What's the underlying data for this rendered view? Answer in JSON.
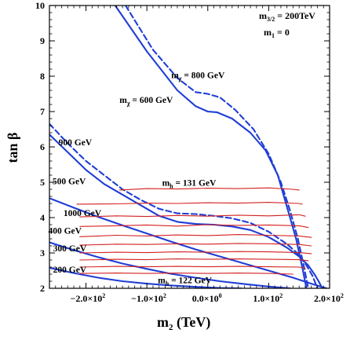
{
  "chart_data": {
    "type": "line",
    "xlabel_main": "m",
    "xlabel_sub": "2",
    "xlabel_unit": " (TeV)",
    "ylabel": "tan β",
    "xlim": [
      -260,
      200
    ],
    "ylim": [
      2,
      10
    ],
    "x_ticks": [
      {
        "value": -200,
        "label": "−2.0×10"
      },
      {
        "value": -100,
        "label": "−1.0×10"
      },
      {
        "value": 0,
        "label": "0.0×10"
      },
      {
        "value": 100,
        "label": "1.0×10"
      },
      {
        "value": 200,
        "label": "2.0×10"
      }
    ],
    "x_tick_exponents": [
      "2",
      "2",
      "0",
      "2",
      "2"
    ],
    "y_ticks": [
      2,
      3,
      4,
      5,
      6,
      7,
      8,
      9,
      10
    ],
    "params": {
      "line1_main": "m",
      "line1_sub": "3/2",
      "line1_rest": " = 200TeV",
      "line2_main": "m",
      "line2_sub": "1",
      "line2_rest": " = 0"
    },
    "colors": {
      "neutralino": "#1f3ed6",
      "higgs": "#d42020"
    },
    "series": [
      {
        "group": "neutralino",
        "style": "solid",
        "x": [
          -152,
          -100,
          -50,
          -20,
          0,
          15,
          40,
          70,
          95,
          115,
          130,
          145,
          155,
          162
        ],
        "y": [
          10,
          8.7,
          7.6,
          7.15,
          7.0,
          6.98,
          6.8,
          6.4,
          5.9,
          5.2,
          4.3,
          3.4,
          2.6,
          2.0
        ]
      },
      {
        "group": "neutralino",
        "style": "dashed",
        "x": [
          -135,
          -90,
          -50,
          -20,
          0,
          20,
          45,
          75,
          100,
          120,
          135,
          148,
          158,
          165
        ],
        "y": [
          10,
          8.75,
          7.95,
          7.55,
          7.5,
          7.4,
          7.05,
          6.5,
          5.8,
          5.0,
          4.2,
          3.4,
          2.6,
          2.0
        ]
      },
      {
        "group": "neutralino",
        "style": "solid",
        "x": [
          -260,
          -230,
          -200,
          -170,
          -140,
          -110,
          -80,
          -50,
          -20,
          10,
          40,
          70,
          100,
          130,
          150,
          165,
          175,
          182,
          188
        ],
        "y": [
          6.35,
          5.85,
          5.35,
          4.95,
          4.65,
          4.35,
          4.05,
          3.88,
          3.82,
          3.8,
          3.75,
          3.65,
          3.45,
          3.15,
          2.9,
          2.65,
          2.4,
          2.2,
          2.0
        ]
      },
      {
        "group": "neutralino",
        "style": "dashed",
        "x": [
          -260,
          -230,
          -200,
          -170,
          -140,
          -110,
          -80,
          -50,
          -20,
          10,
          40,
          70,
          100,
          130,
          150,
          162,
          172,
          180
        ],
        "y": [
          6.65,
          6.1,
          5.6,
          5.2,
          4.8,
          4.5,
          4.25,
          4.12,
          4.1,
          4.05,
          3.98,
          3.85,
          3.6,
          3.25,
          2.95,
          2.65,
          2.35,
          2.0
        ]
      },
      {
        "group": "neutralino",
        "style": "solid",
        "x": [
          -260,
          -220,
          -180,
          -140,
          -100,
          -60,
          -20,
          20,
          60,
          100,
          140,
          170,
          185,
          195
        ],
        "y": [
          4.55,
          4.28,
          4.02,
          3.78,
          3.55,
          3.32,
          3.1,
          2.9,
          2.7,
          2.5,
          2.3,
          2.13,
          2.05,
          2.0
        ]
      },
      {
        "group": "neutralino",
        "style": "solid",
        "x": [
          -260,
          -220,
          -180,
          -140,
          -100,
          -60,
          -20,
          20,
          60,
          100,
          135
        ],
        "y": [
          3.3,
          3.08,
          2.88,
          2.7,
          2.55,
          2.41,
          2.3,
          2.2,
          2.12,
          2.05,
          2.0
        ]
      },
      {
        "group": "neutralino",
        "style": "solid",
        "x": [
          -260,
          -220,
          -180,
          -140,
          -100,
          -60,
          -20,
          20,
          55
        ],
        "y": [
          2.58,
          2.43,
          2.3,
          2.2,
          2.13,
          2.08,
          2.04,
          2.01,
          2.0
        ]
      },
      {
        "group": "higgs",
        "style": "solid",
        "x": [
          -145,
          -100,
          -50,
          0,
          50,
          100,
          140,
          150
        ],
        "y": [
          4.78,
          4.82,
          4.81,
          4.83,
          4.82,
          4.84,
          4.8,
          4.78
        ]
      },
      {
        "group": "higgs",
        "style": "solid",
        "x": [
          -215,
          -150,
          -100,
          -50,
          0,
          50,
          100,
          150,
          155
        ],
        "y": [
          4.38,
          4.39,
          4.41,
          4.4,
          4.42,
          4.41,
          4.43,
          4.4,
          4.38
        ]
      },
      {
        "group": "higgs",
        "style": "solid",
        "x": [
          -210,
          -150,
          -100,
          -50,
          0,
          50,
          100,
          150,
          160
        ],
        "y": [
          4.02,
          4.05,
          4.03,
          4.06,
          4.04,
          4.07,
          4.05,
          4.08,
          4.04
        ]
      },
      {
        "group": "higgs",
        "style": "solid",
        "x": [
          -210,
          -150,
          -100,
          -50,
          0,
          50,
          100,
          150,
          165
        ],
        "y": [
          3.75,
          3.77,
          3.79,
          3.76,
          3.8,
          3.78,
          3.79,
          3.77,
          3.72
        ]
      },
      {
        "group": "higgs",
        "style": "solid",
        "x": [
          -210,
          -150,
          -100,
          -50,
          0,
          50,
          100,
          150,
          170
        ],
        "y": [
          3.46,
          3.5,
          3.48,
          3.51,
          3.49,
          3.52,
          3.5,
          3.48,
          3.44
        ]
      },
      {
        "group": "higgs",
        "style": "solid",
        "x": [
          -210,
          -150,
          -100,
          -50,
          0,
          50,
          100,
          150,
          170
        ],
        "y": [
          3.22,
          3.25,
          3.24,
          3.26,
          3.25,
          3.27,
          3.26,
          3.24,
          3.2
        ]
      },
      {
        "group": "higgs",
        "style": "solid",
        "x": [
          -210,
          -150,
          -100,
          -50,
          0,
          50,
          100,
          150,
          170
        ],
        "y": [
          3.0,
          3.02,
          3.01,
          3.03,
          3.02,
          3.04,
          3.03,
          3.01,
          2.98
        ]
      },
      {
        "group": "higgs",
        "style": "solid",
        "x": [
          -210,
          -150,
          -100,
          -50,
          0,
          50,
          100,
          150,
          165
        ],
        "y": [
          2.8,
          2.82,
          2.81,
          2.83,
          2.82,
          2.83,
          2.82,
          2.81,
          2.78
        ]
      },
      {
        "group": "higgs",
        "style": "solid",
        "x": [
          -210,
          -150,
          -100,
          -50,
          0,
          50,
          100,
          150,
          160
        ],
        "y": [
          2.6,
          2.62,
          2.61,
          2.62,
          2.61,
          2.62,
          2.61,
          2.6,
          2.57
        ]
      },
      {
        "group": "higgs",
        "style": "solid",
        "x": [
          -210,
          -150,
          -100,
          -50,
          0,
          50,
          100,
          140
        ],
        "y": [
          2.42,
          2.43,
          2.42,
          2.43,
          2.42,
          2.43,
          2.42,
          2.4
        ]
      }
    ],
    "annotations": [
      {
        "main": "m",
        "sub": "χ",
        "rest": " = 800 GeV",
        "x": -60,
        "y": 7.95
      },
      {
        "main": "m",
        "sub": "χ",
        "rest": " = 600 GeV",
        "x": -145,
        "y": 7.25
      },
      {
        "main": "m",
        "sub": "h",
        "rest": " = 131 GeV",
        "x": -75,
        "y": 4.9
      },
      {
        "main": "m",
        "sub": "h",
        "rest": " = 122 GeV",
        "x": -82,
        "y": 2.15
      },
      {
        "main": "900 GeV",
        "sub": "",
        "rest": "",
        "x": -245,
        "y": 6.05
      },
      {
        "main": "500 GeV",
        "sub": "",
        "rest": "",
        "x": -255,
        "y": 4.95
      },
      {
        "main": "1000 GeV",
        "sub": "",
        "rest": "",
        "x": -237,
        "y": 4.05
      },
      {
        "main": "400 GeV",
        "sub": "",
        "rest": "",
        "x": -262,
        "y": 3.55
      },
      {
        "main": "300 GeV",
        "sub": "",
        "rest": "",
        "x": -254,
        "y": 3.05
      },
      {
        "main": "200 GeV",
        "sub": "",
        "rest": "",
        "x": -254,
        "y": 2.45
      }
    ]
  }
}
